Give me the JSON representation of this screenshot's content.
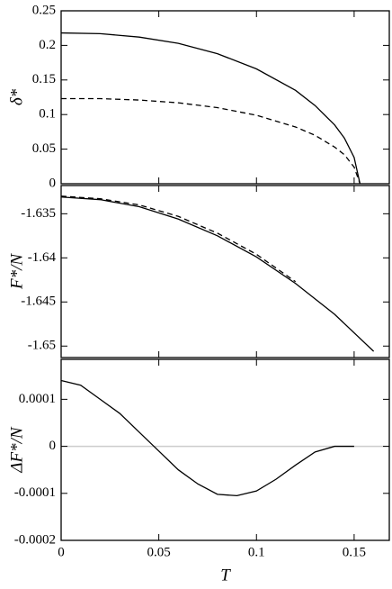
{
  "chart_data": [
    {
      "type": "line",
      "ylabel": "δ*",
      "xlim": [
        0,
        0.168
      ],
      "xticks": [
        0,
        0.05,
        0.1,
        0.15
      ],
      "ylim": [
        0,
        0.25
      ],
      "yticks": [
        0,
        0.05,
        0.1,
        0.15,
        0.2,
        0.25
      ],
      "x": [
        0,
        0.02,
        0.04,
        0.06,
        0.08,
        0.1,
        0.12,
        0.13,
        0.14,
        0.145,
        0.15,
        0.153
      ],
      "series": [
        {
          "color": "#000000",
          "dash": "solid",
          "values": [
            0.218,
            0.217,
            0.212,
            0.203,
            0.188,
            0.166,
            0.135,
            0.113,
            0.085,
            0.066,
            0.038,
            0
          ]
        },
        {
          "color": "#000000",
          "dash": "dashed",
          "values": [
            0.123,
            0.123,
            0.121,
            0.117,
            0.11,
            0.099,
            0.082,
            0.07,
            0.053,
            0.042,
            0.024,
            0
          ]
        }
      ]
    },
    {
      "type": "line",
      "ylabel": "F*/N",
      "xlim": [
        0,
        0.168
      ],
      "xticks": [
        0,
        0.05,
        0.1,
        0.15
      ],
      "ylim": [
        -1.6513,
        -1.6318
      ],
      "yticks": [
        -1.65,
        -1.645,
        -1.64,
        -1.635
      ],
      "x": [
        0,
        0.02,
        0.04,
        0.06,
        0.08,
        0.1,
        0.12,
        0.14,
        0.16
      ],
      "series": [
        {
          "color": "#000000",
          "dash": "solid",
          "values": [
            -1.6331,
            -1.6334,
            -1.6342,
            -1.6356,
            -1.6375,
            -1.6399,
            -1.6429,
            -1.6464,
            -1.6506
          ]
        },
        {
          "color": "#000000",
          "dash": "dashed",
          "values": [
            -1.633,
            -1.6333,
            -1.634,
            -1.6353,
            -1.6372,
            -1.6396,
            -1.6427,
            null,
            null
          ]
        }
      ]
    },
    {
      "type": "line",
      "ylabel": "ΔF*/N",
      "xlabel": "T",
      "xlim": [
        0,
        0.168
      ],
      "xticks": [
        0,
        0.05,
        0.1,
        0.15
      ],
      "ylim": [
        -0.0002,
        0.000185
      ],
      "yticks": [
        -0.0002,
        -0.0001,
        0,
        0.0001
      ],
      "reference_line": {
        "value": 0,
        "color": "#cccccc"
      },
      "x": [
        0,
        0.01,
        0.02,
        0.03,
        0.04,
        0.05,
        0.06,
        0.07,
        0.08,
        0.09,
        0.1,
        0.11,
        0.12,
        0.13,
        0.14,
        0.15
      ],
      "series": [
        {
          "color": "#000000",
          "dash": "solid",
          "values": [
            0.00014,
            0.00013,
            0.0001,
            7e-05,
            3e-05,
            -1e-05,
            -5e-05,
            -8e-05,
            -0.000102,
            -0.000105,
            -9.5e-05,
            -7e-05,
            -4e-05,
            -1.2e-05,
            0,
            0
          ]
        }
      ]
    }
  ]
}
